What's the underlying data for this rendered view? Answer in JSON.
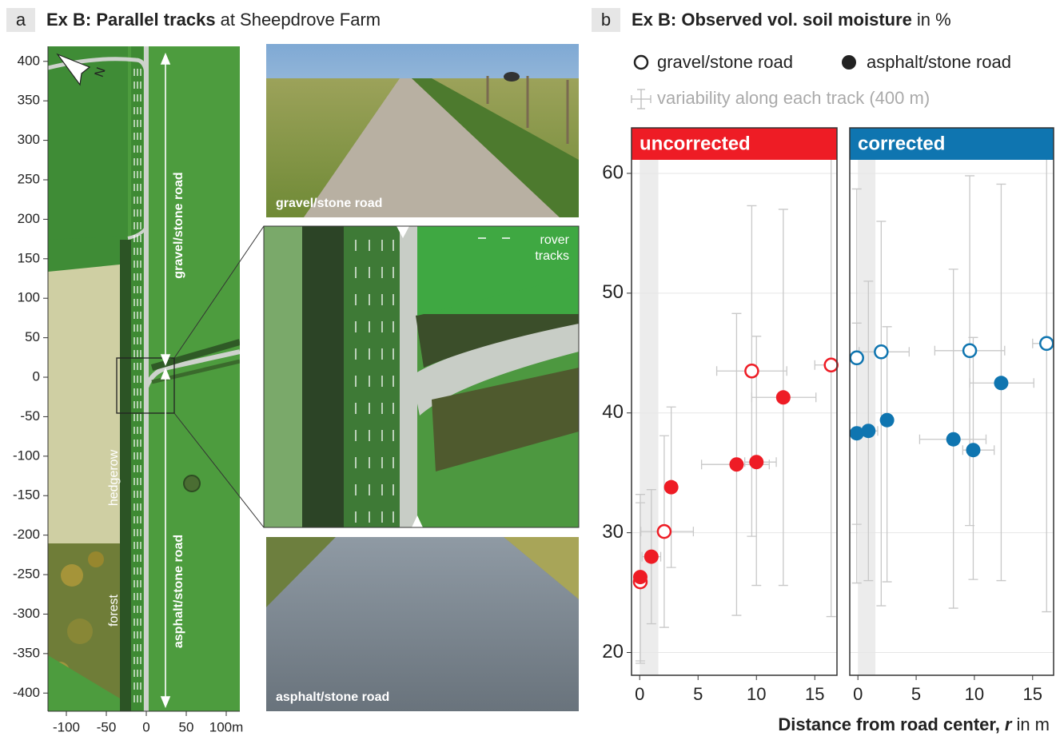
{
  "panel_a": {
    "label": "a",
    "title_bold": "Ex B: Parallel tracks",
    "title_rest": "at Sheepdrove Farm",
    "map": {
      "xlim": [
        -123,
        117
      ],
      "ylim": [
        -423,
        419
      ],
      "xticks": [
        -100,
        -50,
        0,
        50,
        {
          "value": 100,
          "label": "100m"
        }
      ],
      "yticks": [
        400,
        350,
        300,
        250,
        200,
        150,
        100,
        50,
        0,
        -50,
        -100,
        -150,
        -200,
        -250,
        -300,
        -350,
        -400
      ],
      "labels": {
        "north": "N",
        "gravel_road": "gravel/stone road",
        "asphalt_road": "asphalt/stone road",
        "hedgerow": "hedgerow",
        "forest": "forest"
      }
    },
    "photos": {
      "gravel": "gravel/stone road",
      "rover_tracks": [
        "rover",
        "tracks"
      ],
      "asphalt": "asphalt/stone road"
    }
  },
  "panel_b": {
    "label": "b",
    "title_bold": "Ex B: Observed vol. soil moisture",
    "title_rest": "in %",
    "legend_variability": "variability along each track (400 m)",
    "xlabel_bold": "Distance from road center,",
    "xlabel_var": "r",
    "xlabel_rest": "in m"
  },
  "chart_data": [
    {
      "type": "scatter",
      "title": "uncorrected",
      "header_color": "#ee1c25",
      "xlim": [
        -0.7,
        16.9
      ],
      "ylim": [
        18.1,
        63.8
      ],
      "xticks": [
        0,
        5,
        10,
        15
      ],
      "yticks": [
        20,
        30,
        40,
        50,
        60
      ],
      "grid": true,
      "shade_x": [
        0,
        1.6
      ],
      "series": [
        {
          "name": "gravel/stone road",
          "marker": "open",
          "color": "#ee1c25",
          "x": [
            0.05,
            2.1,
            9.6,
            16.4
          ],
          "values": [
            25.9,
            30.1,
            43.5,
            44.0
          ],
          "ylow": [
            19.3,
            22.1,
            29.7,
            23.0
          ],
          "yhigh": [
            32.5,
            38.1,
            57.3,
            63.0
          ],
          "xlow": [
            null,
            0.1,
            6.6,
            15.0
          ],
          "xhigh": [
            null,
            4.6,
            12.6,
            16.9
          ]
        },
        {
          "name": "asphalt/stone road",
          "marker": "filled",
          "color": "#ee1c25",
          "x": [
            0.05,
            1.0,
            2.7,
            8.3,
            10.0,
            12.3
          ],
          "values": [
            26.3,
            28.0,
            33.8,
            35.7,
            35.9,
            41.3
          ],
          "ylow": [
            19.1,
            22.4,
            27.1,
            23.1,
            25.6,
            25.6
          ],
          "yhigh": [
            33.2,
            33.6,
            40.5,
            48.3,
            46.4,
            57.0
          ],
          "xlow": [
            null,
            0.2,
            null,
            5.3,
            9.0,
            9.6
          ],
          "xhigh": [
            null,
            1.8,
            null,
            11.1,
            11.7,
            15.1
          ]
        }
      ]
    },
    {
      "type": "scatter",
      "title": "corrected",
      "header_color": "#0f75b0",
      "xlim": [
        -0.7,
        16.8
      ],
      "ylim": [
        18.1,
        63.8
      ],
      "xticks": [
        0,
        5,
        10,
        15
      ],
      "yticks": [
        20,
        30,
        40,
        50,
        60
      ],
      "grid": true,
      "shade_x": [
        0,
        1.5
      ],
      "series": [
        {
          "marker": "open",
          "color": "#0f75b0",
          "x": [
            -0.1,
            2.0,
            9.6,
            16.2
          ],
          "values": [
            44.6,
            45.1,
            45.2,
            45.8
          ],
          "ylow": [
            25.8,
            23.9,
            30.6,
            23.4
          ],
          "yhigh": [
            58.7,
            56.0,
            59.8,
            62.0
          ],
          "xlow": [
            null,
            0.1,
            6.6,
            15.0
          ],
          "xhigh": [
            null,
            4.4,
            12.6,
            16.8
          ]
        },
        {
          "marker": "filled",
          "color": "#0f75b0",
          "x": [
            -0.1,
            0.9,
            2.5,
            8.2,
            9.9,
            12.3
          ],
          "values": [
            38.3,
            38.5,
            39.4,
            37.8,
            36.9,
            42.5
          ],
          "ylow": [
            30.7,
            26.0,
            25.9,
            23.7,
            26.1,
            26.0
          ],
          "yhigh": [
            47.5,
            51.0,
            47.2,
            52.0,
            46.3,
            59.1
          ],
          "xlow": [
            null,
            0.2,
            null,
            5.3,
            9.0,
            9.6
          ],
          "xhigh": [
            null,
            1.7,
            null,
            11.0,
            11.7,
            15.1
          ]
        }
      ]
    }
  ]
}
